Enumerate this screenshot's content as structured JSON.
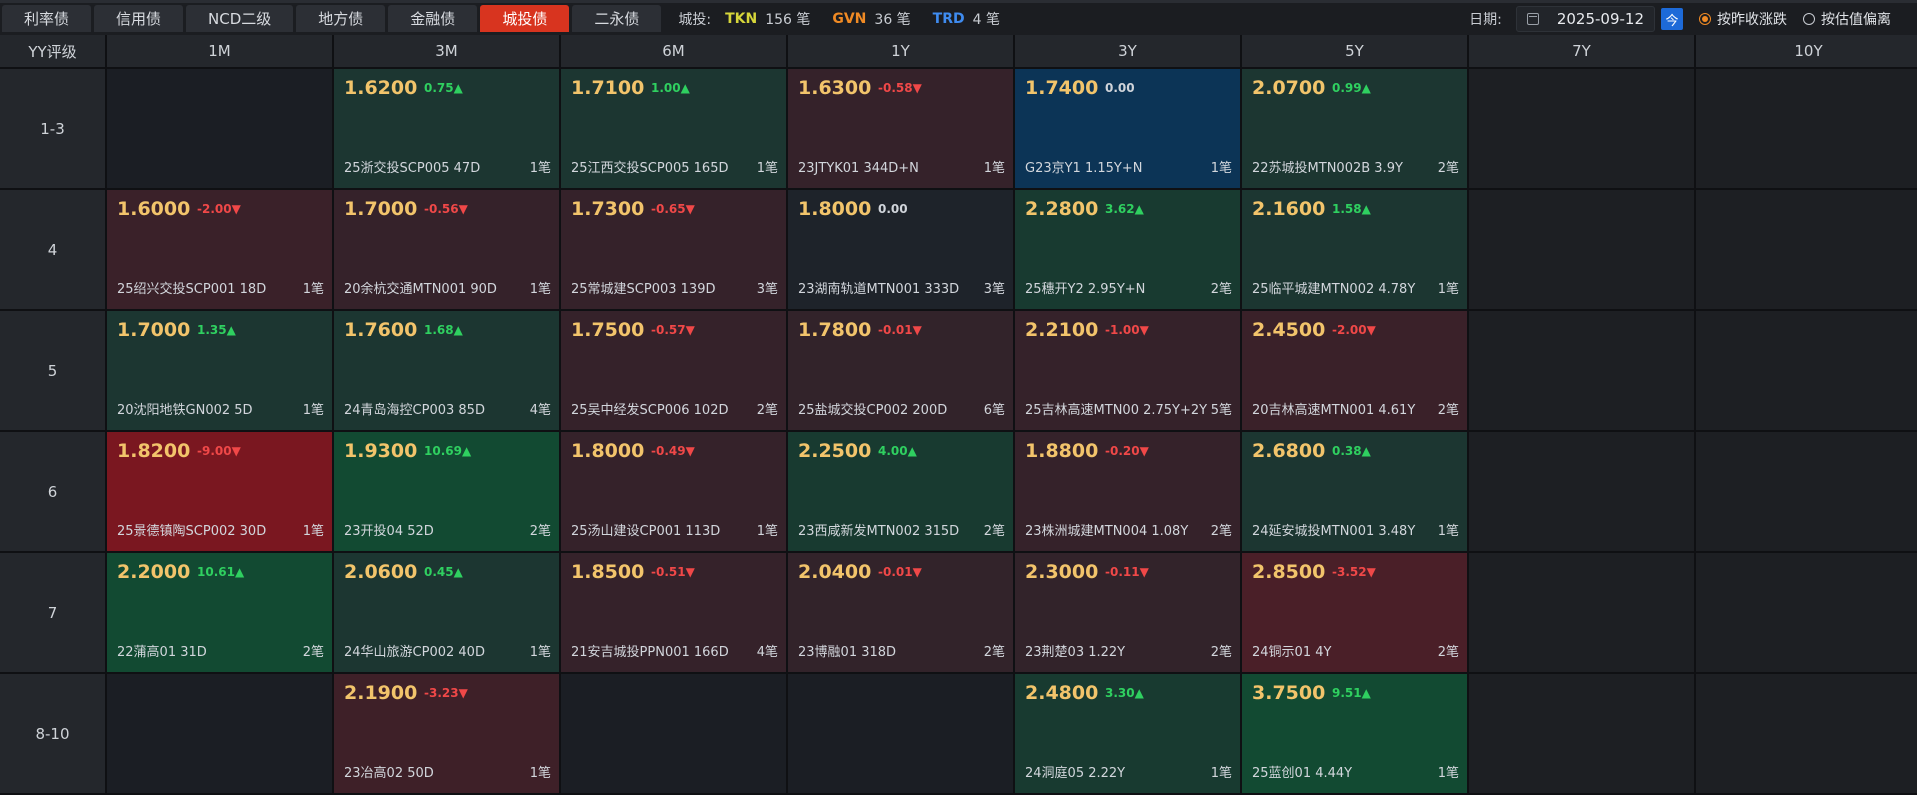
{
  "tabs": [
    {
      "label": "利率债",
      "active": false
    },
    {
      "label": "信用债",
      "active": false
    },
    {
      "label": "NCD二级",
      "active": false
    },
    {
      "label": "地方债",
      "active": false
    },
    {
      "label": "金融债",
      "active": false
    },
    {
      "label": "城投债",
      "active": true
    },
    {
      "label": "二永债",
      "active": false
    }
  ],
  "stats": {
    "label": "城投:",
    "items": [
      {
        "code": "TKN",
        "count": "156 笔",
        "color": "#d6d63a"
      },
      {
        "code": "GVN",
        "count": "36 笔",
        "color": "#f08a24"
      },
      {
        "code": "TRD",
        "count": "4 笔",
        "color": "#3f8cf0"
      }
    ]
  },
  "date": {
    "label": "日期:",
    "value": "2025-09-12",
    "today": "今"
  },
  "radios": [
    {
      "label": "按昨收涨跌",
      "selected": true
    },
    {
      "label": "按估值偏离",
      "selected": false
    }
  ],
  "grid": {
    "corner": "YY评级",
    "columns": [
      "1M",
      "3M",
      "6M",
      "1Y",
      "3Y",
      "5Y",
      "7Y",
      "10Y"
    ],
    "rows": [
      {
        "label": "1-3",
        "cells": [
          null,
          {
            "price": "1.6200",
            "chg": "0.75▲",
            "dir": "up",
            "bond": "25浙交投SCP005 47D",
            "count": "1笔",
            "bg": "#1c3631"
          },
          {
            "price": "1.7100",
            "chg": "1.00▲",
            "dir": "up",
            "bond": "25江西交投SCP005 165D",
            "count": "1笔",
            "bg": "#1c3631"
          },
          {
            "price": "1.6300",
            "chg": "-0.58▼",
            "dir": "down",
            "bond": "23JTYK01 344D+N",
            "count": "1笔",
            "bg": "#35222a"
          },
          {
            "price": "1.7400",
            "chg": "0.00",
            "dir": "flat",
            "bond": "G23京Y1 1.15Y+N",
            "count": "1笔",
            "bg": "#0c3456"
          },
          {
            "price": "2.0700",
            "chg": "0.99▲",
            "dir": "up",
            "bond": "22苏城投MTN002B 3.9Y",
            "count": "2笔",
            "bg": "#1c3631"
          },
          "dark",
          "dark"
        ]
      },
      {
        "label": "4",
        "cells": [
          {
            "price": "1.6000",
            "chg": "-2.00▼",
            "dir": "down",
            "bond": "25绍兴交投SCP001 18D",
            "count": "1笔",
            "bg": "#3a2129"
          },
          {
            "price": "1.7000",
            "chg": "-0.56▼",
            "dir": "down",
            "bond": "20余杭交通MTN001 90D",
            "count": "1笔",
            "bg": "#35222a"
          },
          {
            "price": "1.7300",
            "chg": "-0.65▼",
            "dir": "down",
            "bond": "25常城建SCP003 139D",
            "count": "3笔",
            "bg": "#35222a"
          },
          {
            "price": "1.8000",
            "chg": "0.00",
            "dir": "flat",
            "bond": "23湖南轨道MTN001 333D",
            "count": "3笔",
            "bg": "#1e232a"
          },
          {
            "price": "2.2800",
            "chg": "3.62▲",
            "dir": "up",
            "bond": "25穗开Y2 2.95Y+N",
            "count": "2笔",
            "bg": "#183a30"
          },
          {
            "price": "2.1600",
            "chg": "1.58▲",
            "dir": "up",
            "bond": "25临平城建MTN002 4.78Y",
            "count": "1笔",
            "bg": "#1c3631"
          },
          "dark",
          "dark"
        ]
      },
      {
        "label": "5",
        "cells": [
          {
            "price": "1.7000",
            "chg": "1.35▲",
            "dir": "up",
            "bond": "20沈阳地铁GN002 5D",
            "count": "1笔",
            "bg": "#1c3631"
          },
          {
            "price": "1.7600",
            "chg": "1.68▲",
            "dir": "up",
            "bond": "24青岛海控CP003 85D",
            "count": "4笔",
            "bg": "#1c3631"
          },
          {
            "price": "1.7500",
            "chg": "-0.57▼",
            "dir": "down",
            "bond": "25吴中经发SCP006 102D",
            "count": "2笔",
            "bg": "#35222a"
          },
          {
            "price": "1.7800",
            "chg": "-0.01▼",
            "dir": "down",
            "bond": "25盐城交投CP002 200D",
            "count": "6笔",
            "bg": "#32232a"
          },
          {
            "price": "2.2100",
            "chg": "-1.00▼",
            "dir": "down",
            "bond": "25吉林高速MTN00 2.75Y+2Y",
            "count": "5笔",
            "bg": "#35222a"
          },
          {
            "price": "2.4500",
            "chg": "-2.00▼",
            "dir": "down",
            "bond": "20吉林高速MTN001 4.61Y",
            "count": "2笔",
            "bg": "#3a2129"
          },
          "dark",
          "dark"
        ]
      },
      {
        "label": "6",
        "cells": [
          {
            "price": "1.8200",
            "chg": "-9.00▼",
            "dir": "down",
            "bond": "25景德镇陶SCP002 30D",
            "count": "1笔",
            "bg": "#7a1720"
          },
          {
            "price": "1.9300",
            "chg": "10.69▲",
            "dir": "up",
            "bond": "23开投04 52D",
            "count": "2笔",
            "bg": "#124a32"
          },
          {
            "price": "1.8000",
            "chg": "-0.49▼",
            "dir": "down",
            "bond": "25汤山建设CP001 113D",
            "count": "1笔",
            "bg": "#35222a"
          },
          {
            "price": "2.2500",
            "chg": "4.00▲",
            "dir": "up",
            "bond": "23西咸新发MTN002 315D",
            "count": "2笔",
            "bg": "#183a30"
          },
          {
            "price": "1.8800",
            "chg": "-0.20▼",
            "dir": "down",
            "bond": "23株洲城建MTN004 1.08Y",
            "count": "2笔",
            "bg": "#35222a"
          },
          {
            "price": "2.6800",
            "chg": "0.38▲",
            "dir": "up",
            "bond": "24延安城投MTN001 3.48Y",
            "count": "1笔",
            "bg": "#1c3631"
          },
          "dark",
          "dark"
        ]
      },
      {
        "label": "7",
        "cells": [
          {
            "price": "2.2000",
            "chg": "10.61▲",
            "dir": "up",
            "bond": "22蒲高01 31D",
            "count": "2笔",
            "bg": "#124a32"
          },
          {
            "price": "2.0600",
            "chg": "0.45▲",
            "dir": "up",
            "bond": "24华山旅游CP002 40D",
            "count": "1笔",
            "bg": "#1c3631"
          },
          {
            "price": "1.8500",
            "chg": "-0.51▼",
            "dir": "down",
            "bond": "21安吉城投PPN001 166D",
            "count": "4笔",
            "bg": "#35222a"
          },
          {
            "price": "2.0400",
            "chg": "-0.01▼",
            "dir": "down",
            "bond": "23博融01 318D",
            "count": "2笔",
            "bg": "#32232a"
          },
          {
            "price": "2.3000",
            "chg": "-0.11▼",
            "dir": "down",
            "bond": "23荆楚03 1.22Y",
            "count": "2笔",
            "bg": "#32232a"
          },
          {
            "price": "2.8500",
            "chg": "-3.52▼",
            "dir": "down",
            "bond": "24铜示01 4Y",
            "count": "2笔",
            "bg": "#4a1f28"
          },
          "dark",
          "dark"
        ]
      },
      {
        "label": "8-10",
        "cells": [
          null,
          {
            "price": "2.1900",
            "chg": "-3.23▼",
            "dir": "down",
            "bond": "23冶高02 50D",
            "count": "1笔",
            "bg": "#3e2028"
          },
          null,
          null,
          {
            "price": "2.4800",
            "chg": "3.30▲",
            "dir": "up",
            "bond": "24洞庭05 2.22Y",
            "count": "1笔",
            "bg": "#183a30"
          },
          {
            "price": "3.7500",
            "chg": "9.51▲",
            "dir": "up",
            "bond": "25蓝创01 4.44Y",
            "count": "1笔",
            "bg": "#124a32"
          },
          "dark",
          "dark"
        ]
      }
    ]
  }
}
